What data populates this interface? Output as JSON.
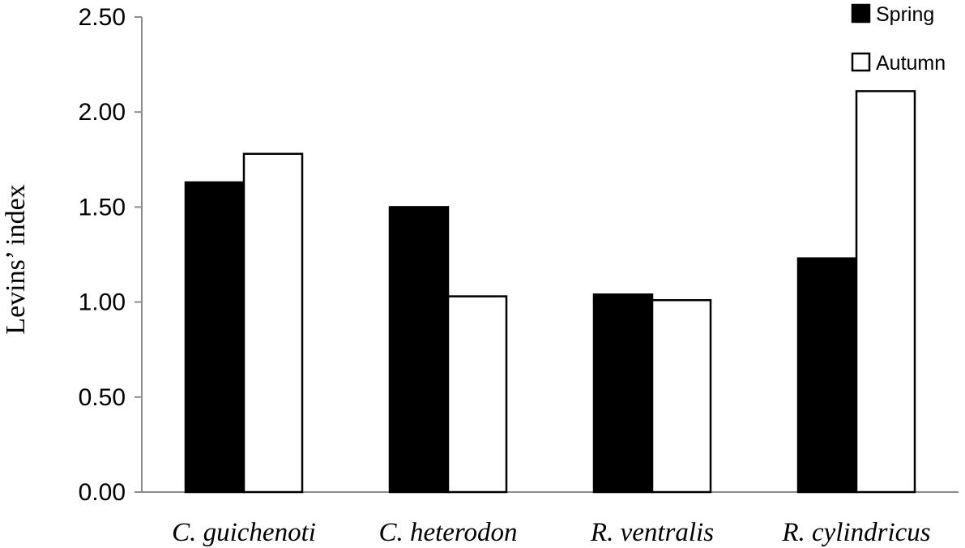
{
  "chart_data": {
    "type": "bar",
    "title": "",
    "xlabel": "",
    "ylabel": "Levins’ index",
    "categories": [
      "C. guichenoti",
      "C. heterodon",
      "R. ventralis",
      "R. cylindricus"
    ],
    "series": [
      {
        "name": "Spring",
        "values": [
          1.63,
          1.5,
          1.04,
          1.23
        ],
        "color": "#000000"
      },
      {
        "name": "Autumn",
        "values": [
          1.78,
          1.03,
          1.01,
          2.11
        ],
        "color": "#ffffff"
      }
    ],
    "ylim": [
      0,
      2.5
    ],
    "yticks": [
      "0.00",
      "0.50",
      "1.00",
      "1.50",
      "2.00",
      "2.50"
    ],
    "grid": false,
    "legend_position": "top-right"
  }
}
